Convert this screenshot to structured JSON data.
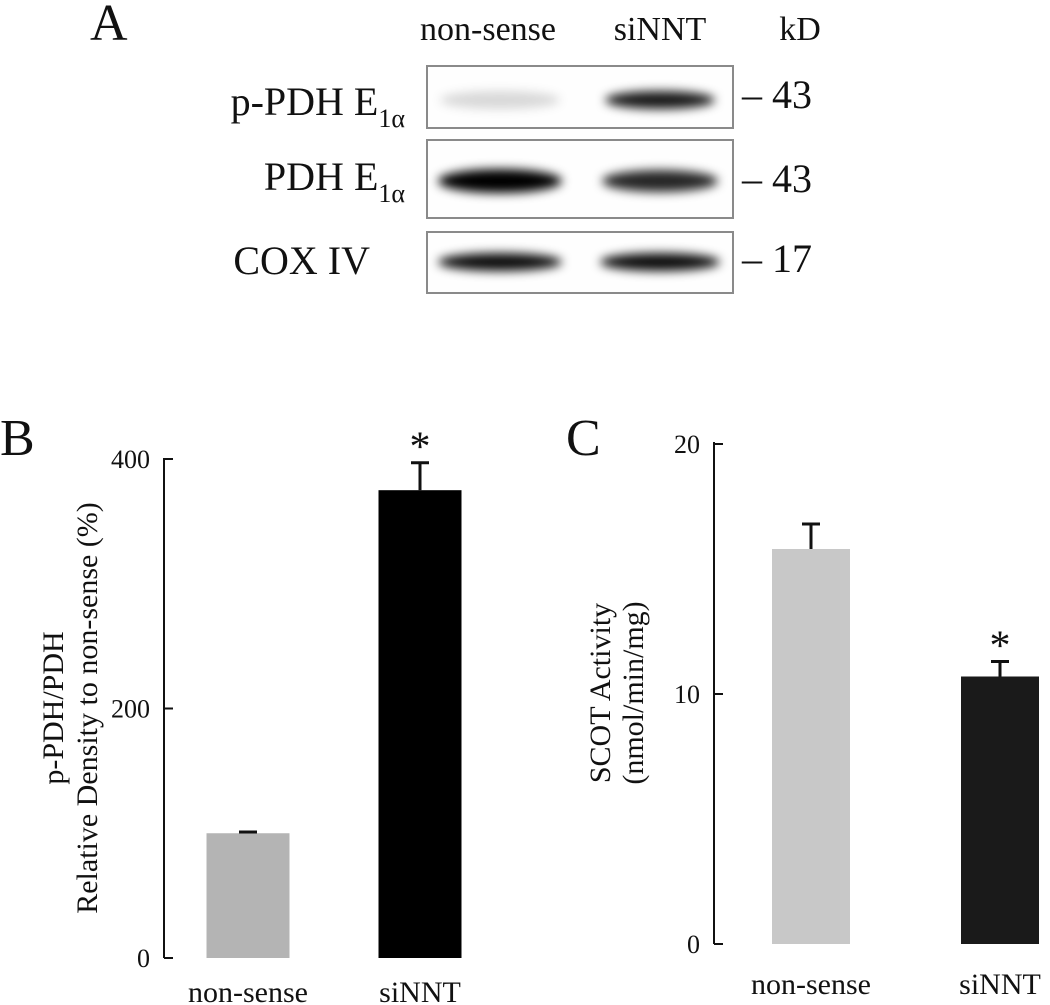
{
  "panel_a": {
    "letter": "A",
    "lane_labels": [
      "non-sense",
      "siNNT"
    ],
    "kd_header": "kD",
    "blots": [
      {
        "label_main": "p-PDH E",
        "label_sub": "1α",
        "kd": "– 43",
        "band_intensity": [
          0.15,
          0.9
        ]
      },
      {
        "label_main": "PDH E",
        "label_sub": "1α",
        "kd": "– 43",
        "band_intensity": [
          1.0,
          0.85
        ]
      },
      {
        "label_main": "COX IV",
        "label_sub": "",
        "kd": "– 17",
        "band_intensity": [
          0.95,
          0.95
        ]
      }
    ]
  },
  "chart_data": [
    {
      "panel": "B",
      "type": "bar",
      "categories": [
        "non-sense",
        "siNNT"
      ],
      "values": [
        100,
        375
      ],
      "errors": [
        1,
        22
      ],
      "colors": [
        "#b4b4b4",
        "#000000"
      ],
      "significance": [
        "",
        "*"
      ],
      "ylabel_lines": [
        "p-PDH/PDH",
        "Relative Density to non-sense (%)"
      ],
      "yticks": [
        "0",
        "200",
        "400"
      ],
      "ylim": [
        0,
        400
      ]
    },
    {
      "panel": "C",
      "type": "bar",
      "categories": [
        "non-sense",
        "siNNT"
      ],
      "values": [
        15.8,
        10.7
      ],
      "errors": [
        1.0,
        0.6
      ],
      "colors": [
        "#c8c8c8",
        "#1a1a1a"
      ],
      "significance": [
        "",
        "*"
      ],
      "ylabel_lines": [
        "SCOT Activity",
        "(nmol/min/mg)"
      ],
      "yticks": [
        "0",
        "10",
        "20"
      ],
      "ylim": [
        0,
        20
      ]
    }
  ]
}
